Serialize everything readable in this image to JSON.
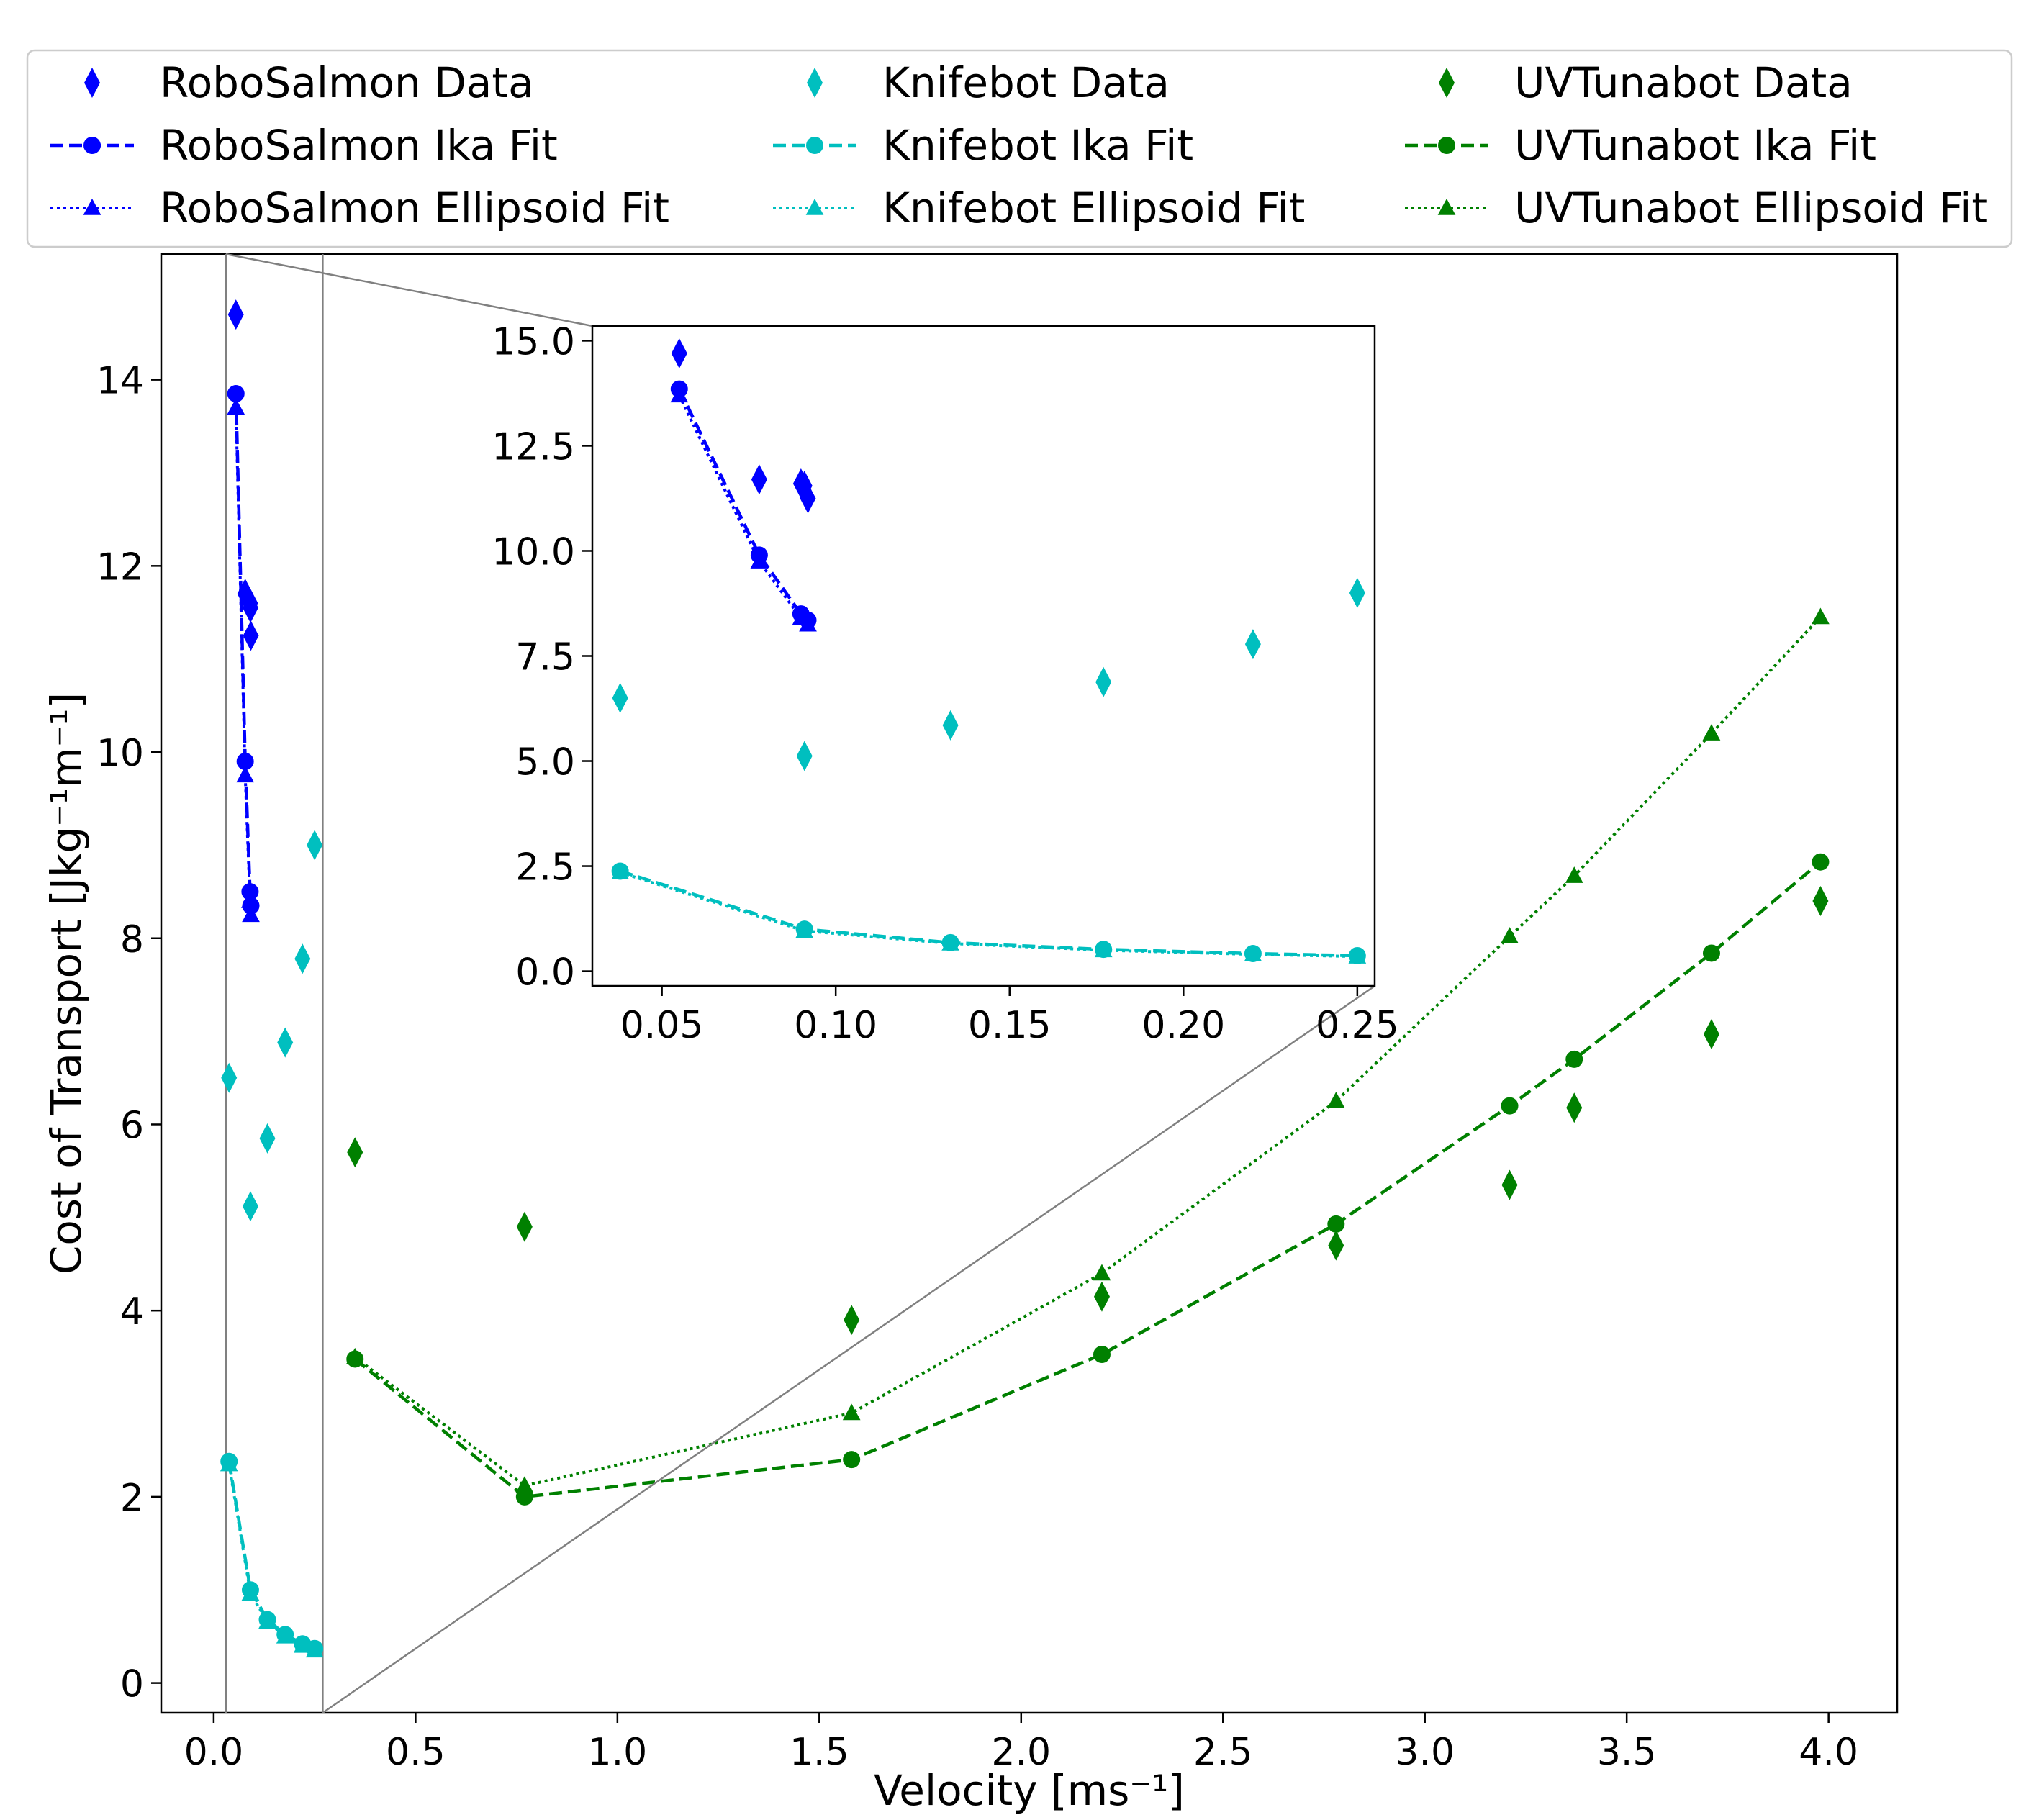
{
  "chart_data": {
    "type": "scatter",
    "xlabel": "Velocity [ms⁻¹]",
    "ylabel": "Cost of Transport [Jkg⁻¹m⁻¹]",
    "xlim": [
      -0.13,
      4.17
    ],
    "ylim": [
      -0.32,
      15.35
    ],
    "xticks": [
      "0.0",
      "0.5",
      "1.0",
      "1.5",
      "2.0",
      "2.5",
      "3.0",
      "3.5",
      "4.0"
    ],
    "yticks": [
      "0",
      "2",
      "4",
      "6",
      "8",
      "10",
      "12",
      "14"
    ],
    "legend": {
      "position": "top, above axes, 3 columns",
      "entries": [
        "RoboSalmon Data",
        "RoboSalmon Ika Fit",
        "RoboSalmon Ellipsoid Fit",
        "Knifebot Data",
        "Knifebot Ika Fit",
        "Knifebot Ellipsoid Fit",
        "UVTunabot Data",
        "UVTunabot Ika Fit",
        "UVTunabot Ellipsoid Fit"
      ]
    },
    "inset": {
      "xlim": [
        0.03,
        0.255
      ],
      "ylim": [
        -0.35,
        15.35
      ],
      "xticks": [
        "0.05",
        "0.10",
        "0.15",
        "0.20",
        "0.25"
      ],
      "yticks": [
        "0.0",
        "2.5",
        "5.0",
        "7.5",
        "10.0",
        "12.5",
        "15.0"
      ],
      "zoom_region": {
        "x": [
          0.03,
          0.27
        ]
      },
      "series": [
        "RoboSalmon Data",
        "RoboSalmon Ika Fit",
        "RoboSalmon Ellipsoid Fit",
        "Knifebot Data",
        "Knifebot Ika Fit",
        "Knifebot Ellipsoid Fit"
      ]
    },
    "series": [
      {
        "name": "RoboSalmon Data",
        "style": "diamond",
        "color": "#0000ff",
        "x": [
          0.055,
          0.078,
          0.09,
          0.092,
          0.091
        ],
        "y": [
          14.7,
          11.7,
          11.6,
          11.25,
          11.55
        ]
      },
      {
        "name": "RoboSalmon Ika Fit",
        "style": "dashed-circle",
        "color": "#0000ff",
        "x": [
          0.055,
          0.078,
          0.09,
          0.092
        ],
        "y": [
          13.85,
          9.9,
          8.5,
          8.35
        ]
      },
      {
        "name": "RoboSalmon Ellipsoid Fit",
        "style": "dotted-triangle",
        "color": "#0000ff",
        "x": [
          0.055,
          0.078,
          0.09,
          0.092
        ],
        "y": [
          13.7,
          9.75,
          8.4,
          8.25
        ]
      },
      {
        "name": "Knifebot Data",
        "style": "diamond",
        "color": "#00bfbf",
        "x": [
          0.038,
          0.091,
          0.133,
          0.177,
          0.22,
          0.25
        ],
        "y": [
          6.5,
          5.12,
          5.85,
          6.88,
          7.78,
          9.0
        ]
      },
      {
        "name": "Knifebot Ika Fit",
        "style": "dashed-circle",
        "color": "#00bfbf",
        "x": [
          0.038,
          0.091,
          0.133,
          0.177,
          0.22,
          0.25
        ],
        "y": [
          2.38,
          1.0,
          0.68,
          0.52,
          0.42,
          0.37
        ]
      },
      {
        "name": "Knifebot Ellipsoid Fit",
        "style": "dotted-triangle",
        "color": "#00bfbf",
        "x": [
          0.038,
          0.091,
          0.133,
          0.177,
          0.22,
          0.25
        ],
        "y": [
          2.35,
          0.96,
          0.66,
          0.5,
          0.4,
          0.35
        ]
      },
      {
        "name": "UVTunabot Data",
        "style": "diamond",
        "color": "#008000",
        "x": [
          0.35,
          0.77,
          1.58,
          2.2,
          2.78,
          3.21,
          3.37,
          3.71,
          3.98
        ],
        "y": [
          5.7,
          4.9,
          3.9,
          4.15,
          4.7,
          5.35,
          6.18,
          6.97,
          8.4
        ]
      },
      {
        "name": "UVTunabot Ika Fit",
        "style": "dashed-circle",
        "color": "#008000",
        "x": [
          0.35,
          0.77,
          1.58,
          2.2,
          2.78,
          3.21,
          3.37,
          3.71,
          3.98
        ],
        "y": [
          3.48,
          2.0,
          2.4,
          3.53,
          4.93,
          6.2,
          6.7,
          7.84,
          8.82
        ]
      },
      {
        "name": "UVTunabot Ellipsoid Fit",
        "style": "dotted-triangle",
        "color": "#008000",
        "x": [
          0.35,
          0.77,
          1.58,
          2.2,
          2.78,
          3.21,
          3.37,
          3.71,
          3.98
        ],
        "y": [
          3.5,
          2.12,
          2.9,
          4.4,
          6.25,
          8.02,
          8.67,
          10.2,
          11.45
        ]
      }
    ]
  }
}
